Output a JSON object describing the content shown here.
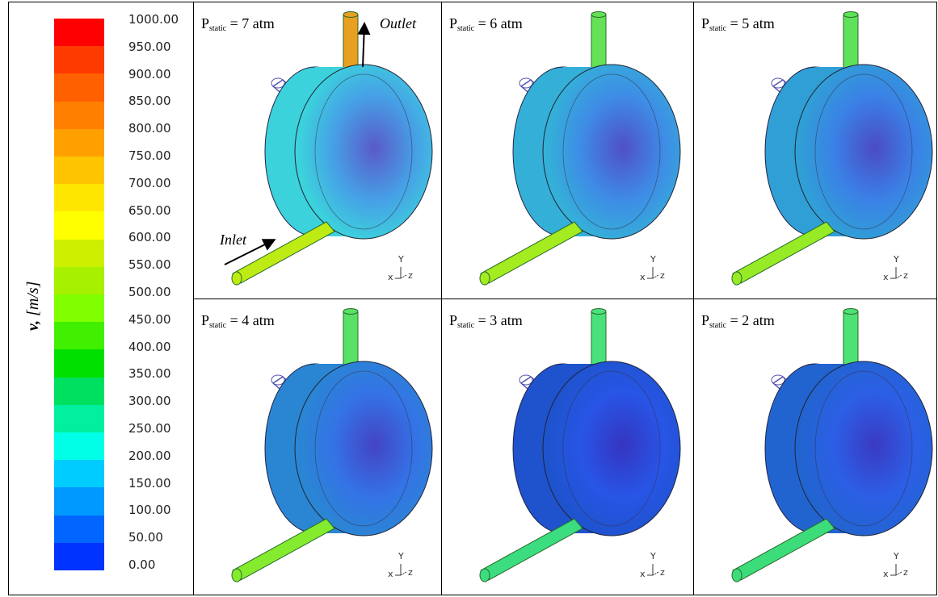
{
  "legend": {
    "quantity_symbol": "v,",
    "quantity_unit": "[m/s]",
    "ticks": [
      "1000.00",
      "950.00",
      "900.00",
      "850.00",
      "800.00",
      "750.00",
      "700.00",
      "650.00",
      "600.00",
      "550.00",
      "500.00",
      "450.00",
      "400.00",
      "350.00",
      "300.00",
      "250.00",
      "200.00",
      "150.00",
      "100.00",
      "50.00",
      "0.00"
    ],
    "colors_top_to_bottom": [
      "#ff0000",
      "#ff3a00",
      "#ff6000",
      "#ff8000",
      "#ffa000",
      "#ffc400",
      "#ffe600",
      "#ffff00",
      "#ccf000",
      "#a6f000",
      "#80ff00",
      "#40f000",
      "#00e000",
      "#00e060",
      "#00f0a0",
      "#00ffe6",
      "#00ccff",
      "#0099ff",
      "#0066ff",
      "#0033ff",
      "#0000ff"
    ]
  },
  "panels": [
    {
      "p": "P",
      "sub": "static",
      "eq": " = 7 atm",
      "intensity": 1.0
    },
    {
      "p": "P",
      "sub": "static",
      "eq": " = 6 atm",
      "intensity": 0.8
    },
    {
      "p": "P",
      "sub": "static",
      "eq": " = 5 atm",
      "intensity": 0.7
    },
    {
      "p": "P",
      "sub": "static",
      "eq": " = 4 atm",
      "intensity": 0.55
    },
    {
      "p": "P",
      "sub": "static",
      "eq": " = 3 atm",
      "intensity": 0.25
    },
    {
      "p": "P",
      "sub": "static",
      "eq": " = 2 atm",
      "intensity": 0.35
    }
  ],
  "annotations": {
    "inlet": "Inlet",
    "outlet": "Outlet"
  },
  "axes": {
    "x": "x",
    "y": "Y",
    "z": "z"
  }
}
